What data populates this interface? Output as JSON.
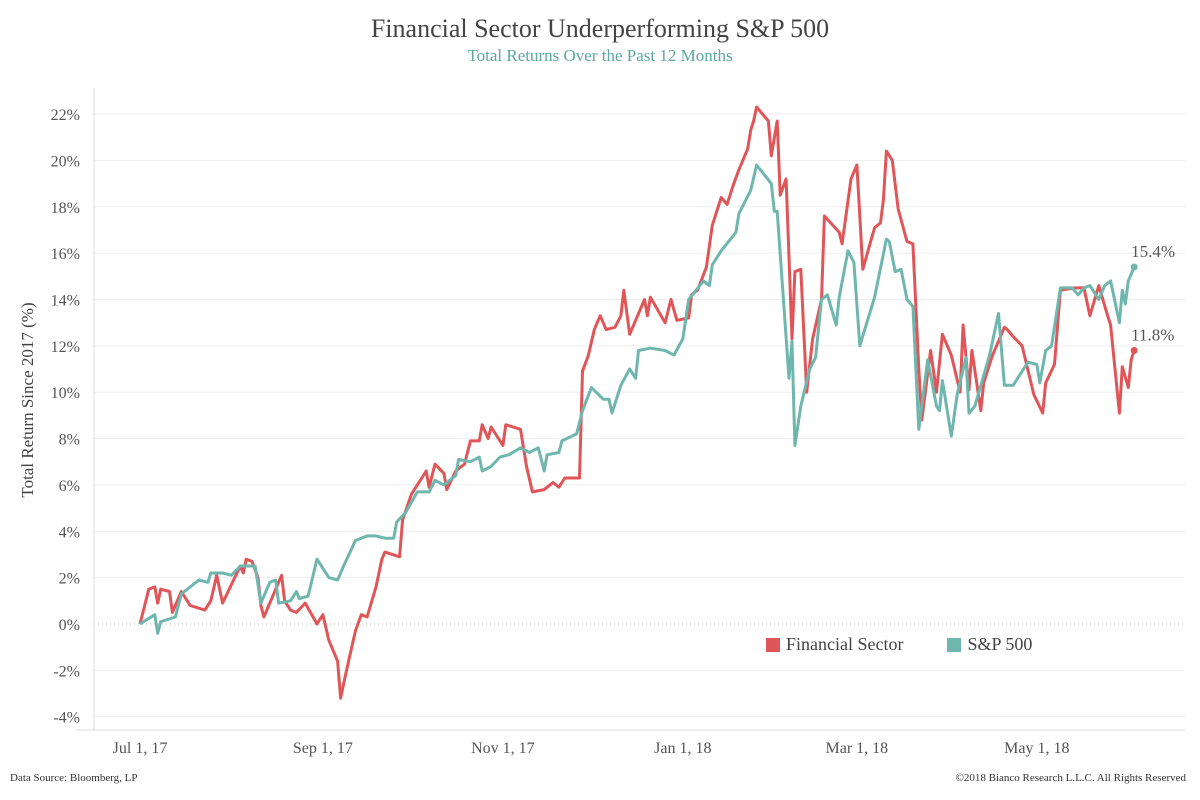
{
  "chart_data": {
    "type": "line",
    "title": "Financial Sector Underperforming S&P 500",
    "subtitle": "Total Returns Over the Past 12 Months",
    "xlabel": "",
    "ylabel": "Total Return Since 2017 (%)",
    "x_unit": "days since Jul 1, 2017",
    "xlim": [
      -10,
      355
    ],
    "ylim": [
      -4.5,
      23
    ],
    "yticks": [
      -4,
      -2,
      0,
      2,
      4,
      6,
      8,
      10,
      12,
      14,
      16,
      18,
      20,
      22
    ],
    "ytick_labels": [
      "-4%",
      "-2%",
      "0%",
      "2%",
      "4%",
      "6%",
      "8%",
      "10%",
      "12%",
      "14%",
      "16%",
      "18%",
      "20%",
      "22%"
    ],
    "xticks": [
      0,
      62,
      123,
      184,
      243,
      304
    ],
    "xtick_labels": [
      "Jul 1, 17",
      "Sep 1, 17",
      "Nov 1, 17",
      "Jan 1, 18",
      "Mar 1, 18",
      "May 1, 18"
    ],
    "grid": true,
    "legend_position": "bottom-right",
    "series": [
      {
        "name": "Financial Sector",
        "color": "#e05558",
        "end_label": "11.8%",
        "points": [
          [
            0,
            0
          ],
          [
            3,
            1.5
          ],
          [
            5,
            1.6
          ],
          [
            6,
            0.9
          ],
          [
            7,
            1.5
          ],
          [
            10,
            1.4
          ],
          [
            11,
            0.5
          ],
          [
            14,
            1.4
          ],
          [
            17,
            0.8
          ],
          [
            22,
            0.6
          ],
          [
            24,
            1.0
          ],
          [
            26,
            2.1
          ],
          [
            28,
            0.9
          ],
          [
            31,
            1.7
          ],
          [
            34,
            2.5
          ],
          [
            35,
            2.2
          ],
          [
            36,
            2.8
          ],
          [
            38,
            2.7
          ],
          [
            40,
            2.0
          ],
          [
            41,
            0.8
          ],
          [
            42,
            0.3
          ],
          [
            46,
            1.5
          ],
          [
            48,
            2.1
          ],
          [
            49,
            1.0
          ],
          [
            51,
            0.6
          ],
          [
            53,
            0.5
          ],
          [
            56,
            0.9
          ],
          [
            60,
            0.0
          ],
          [
            62,
            0.4
          ],
          [
            64,
            -0.7
          ],
          [
            67,
            -1.6
          ],
          [
            68,
            -3.2
          ],
          [
            70,
            -2.0
          ],
          [
            73,
            -0.3
          ],
          [
            75,
            0.4
          ],
          [
            77,
            0.3
          ],
          [
            80,
            1.6
          ],
          [
            82,
            2.8
          ],
          [
            83,
            3.1
          ],
          [
            88,
            2.9
          ],
          [
            89,
            4.5
          ],
          [
            92,
            5.6
          ],
          [
            95,
            6.2
          ],
          [
            97,
            6.6
          ],
          [
            98,
            5.9
          ],
          [
            100,
            6.9
          ],
          [
            103,
            6.5
          ],
          [
            104,
            5.8
          ],
          [
            107,
            6.6
          ],
          [
            110,
            6.9
          ],
          [
            112,
            7.9
          ],
          [
            115,
            7.9
          ],
          [
            116,
            8.6
          ],
          [
            118,
            8.0
          ],
          [
            119,
            8.5
          ],
          [
            123,
            7.7
          ],
          [
            124,
            8.6
          ],
          [
            129,
            8.4
          ],
          [
            131,
            6.8
          ],
          [
            133,
            5.7
          ],
          [
            137,
            5.8
          ],
          [
            140,
            6.1
          ],
          [
            142,
            5.9
          ],
          [
            144,
            6.3
          ],
          [
            149,
            6.3
          ],
          [
            150,
            10.9
          ],
          [
            152,
            11.6
          ],
          [
            154,
            12.7
          ],
          [
            156,
            13.3
          ],
          [
            158,
            12.7
          ],
          [
            161,
            12.8
          ],
          [
            163,
            13.3
          ],
          [
            164,
            14.4
          ],
          [
            166,
            12.5
          ],
          [
            171,
            14.0
          ],
          [
            172,
            13.3
          ],
          [
            173,
            14.1
          ],
          [
            178,
            13.0
          ],
          [
            180,
            14.0
          ],
          [
            182,
            13.1
          ],
          [
            186,
            13.2
          ],
          [
            187,
            14.2
          ],
          [
            189,
            14.4
          ],
          [
            192,
            15.4
          ],
          [
            194,
            17.2
          ],
          [
            197,
            18.4
          ],
          [
            199,
            18.1
          ],
          [
            201,
            18.9
          ],
          [
            203,
            19.6
          ],
          [
            206,
            20.5
          ],
          [
            207,
            21.3
          ],
          [
            208,
            21.7
          ],
          [
            209,
            22.3
          ],
          [
            213,
            21.7
          ],
          [
            214,
            20.2
          ],
          [
            216,
            21.7
          ],
          [
            217,
            18.5
          ],
          [
            219,
            19.2
          ],
          [
            221,
            12.3
          ],
          [
            222,
            15.2
          ],
          [
            224,
            15.3
          ],
          [
            226,
            10.0
          ],
          [
            228,
            12.3
          ],
          [
            231,
            14.0
          ],
          [
            232,
            17.6
          ],
          [
            237,
            16.9
          ],
          [
            238,
            16.4
          ],
          [
            241,
            19.2
          ],
          [
            243,
            19.8
          ],
          [
            245,
            15.3
          ],
          [
            249,
            17.1
          ],
          [
            251,
            17.3
          ],
          [
            252,
            18.3
          ],
          [
            253,
            20.4
          ],
          [
            255,
            20.0
          ],
          [
            257,
            17.9
          ],
          [
            260,
            16.5
          ],
          [
            262,
            16.4
          ],
          [
            264,
            11.0
          ],
          [
            265,
            8.8
          ],
          [
            268,
            11.8
          ],
          [
            270,
            10.0
          ],
          [
            272,
            12.5
          ],
          [
            275,
            11.6
          ],
          [
            278,
            10.0
          ],
          [
            279,
            12.9
          ],
          [
            281,
            10.1
          ],
          [
            282,
            11.8
          ],
          [
            285,
            9.2
          ],
          [
            286,
            10.4
          ],
          [
            289,
            11.6
          ],
          [
            293,
            12.8
          ],
          [
            294,
            12.7
          ],
          [
            296,
            12.4
          ],
          [
            299,
            12.0
          ],
          [
            303,
            9.9
          ],
          [
            306,
            9.1
          ],
          [
            307,
            10.4
          ],
          [
            310,
            11.2
          ],
          [
            312,
            14.4
          ],
          [
            317,
            14.5
          ],
          [
            320,
            14.5
          ],
          [
            322,
            13.3
          ],
          [
            325,
            14.6
          ],
          [
            328,
            13.3
          ],
          [
            329,
            12.9
          ],
          [
            332,
            9.1
          ],
          [
            333,
            11.1
          ],
          [
            335,
            10.2
          ],
          [
            336,
            11.4
          ],
          [
            337,
            11.8
          ]
        ]
      },
      {
        "name": "S&P 500",
        "color": "#6fb6ae",
        "end_label": "15.4%",
        "points": [
          [
            0,
            0
          ],
          [
            5,
            0.4
          ],
          [
            6,
            -0.4
          ],
          [
            7,
            0.1
          ],
          [
            12,
            0.3
          ],
          [
            14,
            1.3
          ],
          [
            20,
            1.9
          ],
          [
            23,
            1.8
          ],
          [
            24,
            2.2
          ],
          [
            28,
            2.2
          ],
          [
            31,
            2.1
          ],
          [
            34,
            2.5
          ],
          [
            39,
            2.5
          ],
          [
            41,
            0.9
          ],
          [
            44,
            1.8
          ],
          [
            46,
            1.9
          ],
          [
            47,
            0.9
          ],
          [
            51,
            1.0
          ],
          [
            53,
            1.4
          ],
          [
            54,
            1.1
          ],
          [
            57,
            1.2
          ],
          [
            60,
            2.8
          ],
          [
            64,
            2.0
          ],
          [
            67,
            1.9
          ],
          [
            69,
            2.5
          ],
          [
            73,
            3.6
          ],
          [
            77,
            3.8
          ],
          [
            80,
            3.8
          ],
          [
            83,
            3.7
          ],
          [
            86,
            3.7
          ],
          [
            87,
            4.4
          ],
          [
            90,
            4.8
          ],
          [
            94,
            5.7
          ],
          [
            98,
            5.7
          ],
          [
            100,
            6.2
          ],
          [
            103,
            6.0
          ],
          [
            107,
            6.4
          ],
          [
            108,
            7.1
          ],
          [
            112,
            7.0
          ],
          [
            115,
            7.2
          ],
          [
            116,
            6.6
          ],
          [
            119,
            6.8
          ],
          [
            122,
            7.2
          ],
          [
            125,
            7.3
          ],
          [
            129,
            7.6
          ],
          [
            132,
            7.4
          ],
          [
            135,
            7.6
          ],
          [
            137,
            6.6
          ],
          [
            138,
            7.3
          ],
          [
            142,
            7.4
          ],
          [
            143,
            7.9
          ],
          [
            148,
            8.2
          ],
          [
            150,
            9.2
          ],
          [
            153,
            10.2
          ],
          [
            157,
            9.7
          ],
          [
            159,
            9.7
          ],
          [
            160,
            9.1
          ],
          [
            163,
            10.3
          ],
          [
            166,
            11.0
          ],
          [
            168,
            10.6
          ],
          [
            169,
            11.8
          ],
          [
            173,
            11.9
          ],
          [
            178,
            11.8
          ],
          [
            181,
            11.6
          ],
          [
            184,
            12.3
          ],
          [
            186,
            14.0
          ],
          [
            191,
            14.8
          ],
          [
            193,
            14.6
          ],
          [
            194,
            15.5
          ],
          [
            197,
            16.1
          ],
          [
            202,
            16.9
          ],
          [
            203,
            17.7
          ],
          [
            205,
            18.2
          ],
          [
            207,
            18.7
          ],
          [
            209,
            19.8
          ],
          [
            214,
            19.0
          ],
          [
            215,
            17.8
          ],
          [
            216,
            17.8
          ],
          [
            218,
            14.2
          ],
          [
            220,
            10.6
          ],
          [
            221,
            12.2
          ],
          [
            222,
            7.7
          ],
          [
            224,
            9.4
          ],
          [
            227,
            11.0
          ],
          [
            229,
            11.5
          ],
          [
            231,
            14.0
          ],
          [
            233,
            14.2
          ],
          [
            236,
            12.9
          ],
          [
            237,
            14.1
          ],
          [
            240,
            16.1
          ],
          [
            242,
            15.6
          ],
          [
            244,
            12.0
          ],
          [
            249,
            14.1
          ],
          [
            253,
            16.6
          ],
          [
            254,
            16.5
          ],
          [
            256,
            15.2
          ],
          [
            258,
            15.3
          ],
          [
            260,
            14.0
          ],
          [
            262,
            13.7
          ],
          [
            264,
            8.4
          ],
          [
            267,
            11.4
          ],
          [
            270,
            9.4
          ],
          [
            271,
            9.2
          ],
          [
            272,
            10.5
          ],
          [
            275,
            8.1
          ],
          [
            277,
            9.9
          ],
          [
            280,
            11.5
          ],
          [
            281,
            9.1
          ],
          [
            283,
            9.4
          ],
          [
            288,
            11.6
          ],
          [
            291,
            13.4
          ],
          [
            293,
            10.3
          ],
          [
            296,
            10.3
          ],
          [
            298,
            10.7
          ],
          [
            301,
            11.3
          ],
          [
            304,
            11.2
          ],
          [
            305,
            10.4
          ],
          [
            307,
            11.8
          ],
          [
            309,
            12.0
          ],
          [
            312,
            14.5
          ],
          [
            316,
            14.5
          ],
          [
            318,
            14.2
          ],
          [
            320,
            14.5
          ],
          [
            322,
            14.6
          ],
          [
            325,
            14.0
          ],
          [
            327,
            14.6
          ],
          [
            329,
            14.8
          ],
          [
            332,
            13.0
          ],
          [
            333,
            14.4
          ],
          [
            334,
            13.8
          ],
          [
            335,
            14.8
          ],
          [
            337,
            15.4
          ]
        ]
      }
    ]
  },
  "footer": {
    "source": "Data Source: Bloomberg, LP",
    "copyright": "©2018 Bianco Research L.L.C.  All Rights Reserved"
  }
}
